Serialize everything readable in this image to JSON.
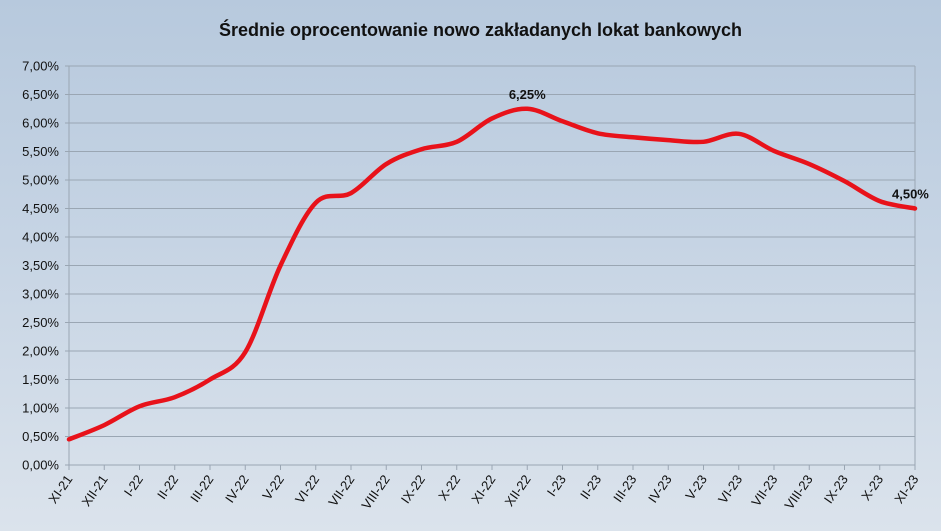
{
  "chart_data": {
    "type": "line",
    "title": "Średnie oprocentowanie nowo zakładanych lokat bankowych",
    "xlabel": "",
    "ylabel": "",
    "ylim": [
      0,
      7
    ],
    "yticks": [
      "0,00%",
      "0,50%",
      "1,00%",
      "1,50%",
      "2,00%",
      "2,50%",
      "3,00%",
      "3,50%",
      "4,00%",
      "4,50%",
      "5,00%",
      "5,50%",
      "6,00%",
      "6,50%",
      "7,00%"
    ],
    "grid": true,
    "legend": null,
    "categories": [
      "XI-21",
      "XII-21",
      "I-22",
      "II-22",
      "III-22",
      "IV-22",
      "V-22",
      "VI-22",
      "VII-22",
      "VIII-22",
      "IX-22",
      "X-22",
      "XI-22",
      "XII-22",
      "I-23",
      "II-23",
      "III-23",
      "IV-23",
      "V-23",
      "VI-23",
      "VII-23",
      "VIII-23",
      "IX-23",
      "X-23",
      "XI-23"
    ],
    "series": [
      {
        "name": "Średnie oprocentowanie",
        "color": "#e8121a",
        "values": [
          0.45,
          0.7,
          1.03,
          1.19,
          1.5,
          1.98,
          3.5,
          4.6,
          4.77,
          5.28,
          5.54,
          5.67,
          6.08,
          6.25,
          6.03,
          5.82,
          5.75,
          5.7,
          5.67,
          5.81,
          5.51,
          5.28,
          4.98,
          4.63,
          4.5
        ]
      }
    ],
    "annotations": [
      {
        "category": "XII-22",
        "label": "6,25%"
      },
      {
        "category": "XI-23",
        "label": "4,50%"
      }
    ]
  }
}
